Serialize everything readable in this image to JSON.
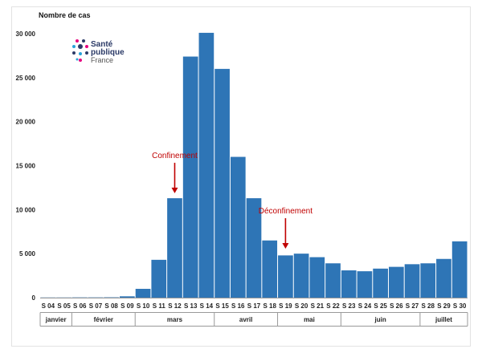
{
  "chart_data": {
    "type": "bar",
    "ylabel": "Nombre de cas",
    "ylim": [
      0,
      30000
    ],
    "y_ticks": [
      "0",
      "5 000",
      "10 000",
      "15 000",
      "20 000",
      "25 000",
      "30 000"
    ],
    "y_tick_values": [
      0,
      5000,
      10000,
      15000,
      20000,
      25000,
      30000
    ],
    "categories": [
      "S 04",
      "S 05",
      "S 06",
      "S 07",
      "S 08",
      "S 09",
      "S 10",
      "S 11",
      "S 12",
      "S 13",
      "S 14",
      "S 15",
      "S 16",
      "S 17",
      "S 18",
      "S 19",
      "S 20",
      "S 21",
      "S 22",
      "S 23",
      "S 24",
      "S 25",
      "S 26",
      "S 27",
      "S 28",
      "S 29",
      "S 30"
    ],
    "values": [
      20,
      20,
      30,
      30,
      40,
      150,
      1000,
      4300,
      11300,
      27400,
      30100,
      26000,
      16000,
      11300,
      6500,
      4800,
      5000,
      4600,
      3900,
      3100,
      3000,
      3300,
      3500,
      3800,
      3900,
      4400,
      6400
    ],
    "months": [
      {
        "label": "janvier",
        "start": 0,
        "end": 2
      },
      {
        "label": "février",
        "start": 2,
        "end": 6
      },
      {
        "label": "mars",
        "start": 6,
        "end": 11
      },
      {
        "label": "avril",
        "start": 11,
        "end": 15
      },
      {
        "label": "mai",
        "start": 15,
        "end": 19
      },
      {
        "label": "juin",
        "start": 19,
        "end": 24
      },
      {
        "label": "juillet",
        "start": 24,
        "end": 27
      }
    ],
    "annotations": [
      {
        "label": "Confinement",
        "category": "S 12",
        "arrow_to_value": 11500
      },
      {
        "label": "Déconfinement",
        "category": "S 19",
        "arrow_to_value": 5200
      }
    ],
    "bar_color": "#2e75b6",
    "annotation_color": "#c00000",
    "grid": false
  },
  "logo": {
    "name": "Santé publique France",
    "line1": "Santé",
    "line2": "publique",
    "line3": "France"
  }
}
